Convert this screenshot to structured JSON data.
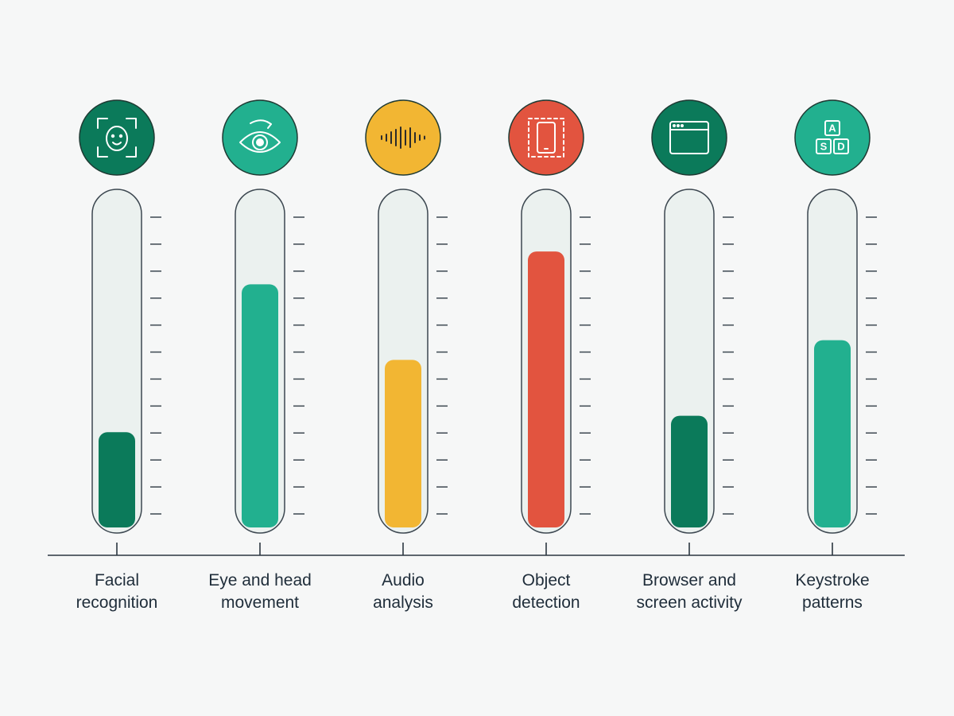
{
  "chart_data": {
    "type": "bar",
    "categories": [
      "Facial\nrecognition",
      "Eye and head\nmovement",
      "Audio\nanalysis",
      "Object\ndetection",
      "Browser and\nscreen activity",
      "Keystroke\npatterns"
    ],
    "values": [
      29,
      74,
      51,
      84,
      34,
      57
    ],
    "colors": [
      "#0b7a5a",
      "#22b08f",
      "#f2b633",
      "#e2543f",
      "#0b7a5a",
      "#22b08f"
    ],
    "ylim": [
      0,
      100
    ]
  },
  "icon_keys": [
    "A",
    "S",
    "D"
  ]
}
